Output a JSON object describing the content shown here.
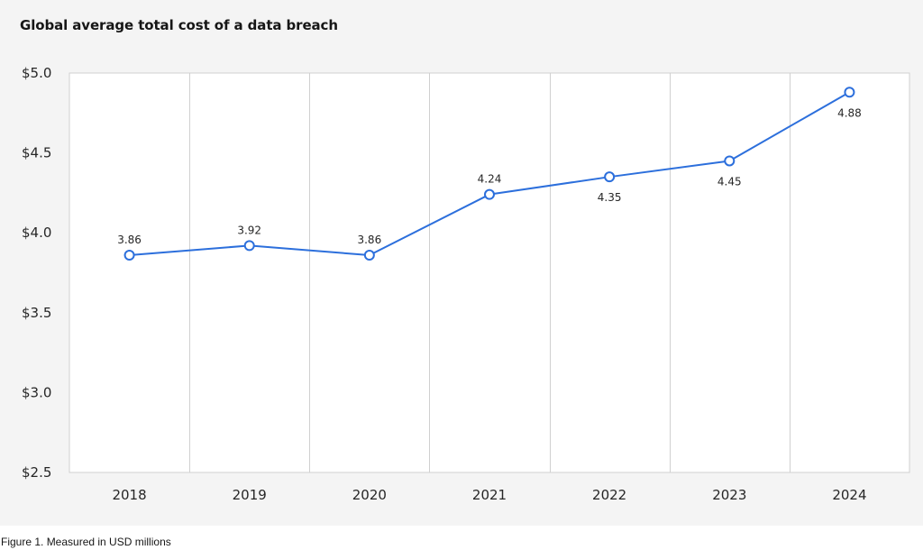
{
  "chart_data": {
    "type": "line",
    "title": "Global average total cost of a data breach",
    "xlabel": "",
    "ylabel": "",
    "categories": [
      "2018",
      "2019",
      "2020",
      "2021",
      "2022",
      "2023",
      "2024"
    ],
    "series": [
      {
        "values": [
          3.86,
          3.92,
          3.86,
          4.24,
          4.35,
          4.45,
          4.88
        ],
        "data_labels": [
          "3.86",
          "3.92",
          "3.86",
          "4.24",
          "4.35",
          "4.45",
          "4.88"
        ],
        "label_positions": [
          "above",
          "above",
          "above",
          "above",
          "below",
          "below",
          "below"
        ],
        "color": "#2c6fdc"
      }
    ],
    "ylim": [
      2.5,
      5.0
    ],
    "yticks": [
      2.5,
      3.0,
      3.5,
      4.0,
      4.5,
      5.0
    ],
    "ytick_labels": [
      "$2.5",
      "$3.0",
      "$3.5",
      "$4.0",
      "$4.5",
      "$5.0"
    ],
    "grid": "vertical",
    "legend": "none"
  },
  "caption": "Figure 1. Measured in USD millions",
  "colors": {
    "panel_background": "#f4f4f4",
    "plot_background": "#ffffff",
    "gridline": "#d0d0d0",
    "line": "#2c6fdc"
  }
}
